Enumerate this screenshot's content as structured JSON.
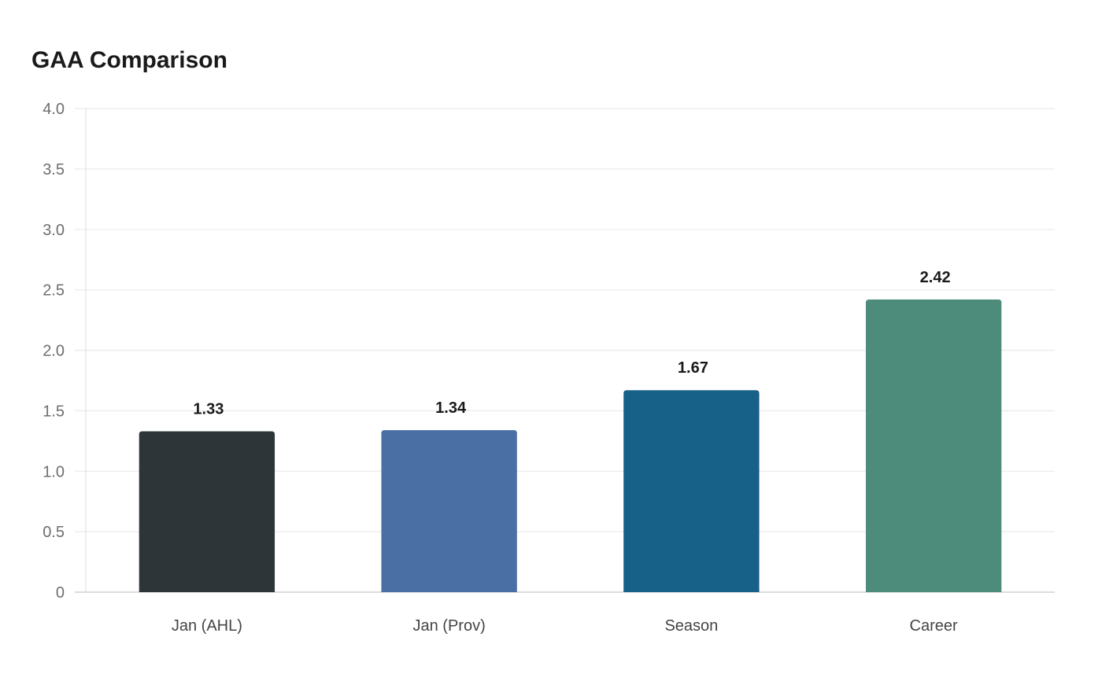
{
  "chart_data": {
    "type": "bar",
    "title": "GAA Comparison",
    "categories": [
      "Jan (AHL)",
      "Jan (Prov)",
      "Season",
      "Career"
    ],
    "values": [
      1.33,
      1.34,
      1.67,
      2.42
    ],
    "data_labels": [
      "1.33",
      "1.34",
      "1.67",
      "2.42"
    ],
    "colors": [
      "#2e3538",
      "#4a6fa5",
      "#176087",
      "#4d8c7a"
    ],
    "xlabel": "",
    "ylabel": "",
    "ylim": [
      0,
      4.0
    ],
    "yticks": [
      0,
      0.5,
      1.0,
      1.5,
      2.0,
      2.5,
      3.0,
      3.5,
      4.0
    ],
    "ytick_labels": [
      "0",
      "0.5",
      "1.0",
      "1.5",
      "2.0",
      "2.5",
      "3.0",
      "3.5",
      "4.0"
    ],
    "grid": true,
    "legend": "none"
  }
}
